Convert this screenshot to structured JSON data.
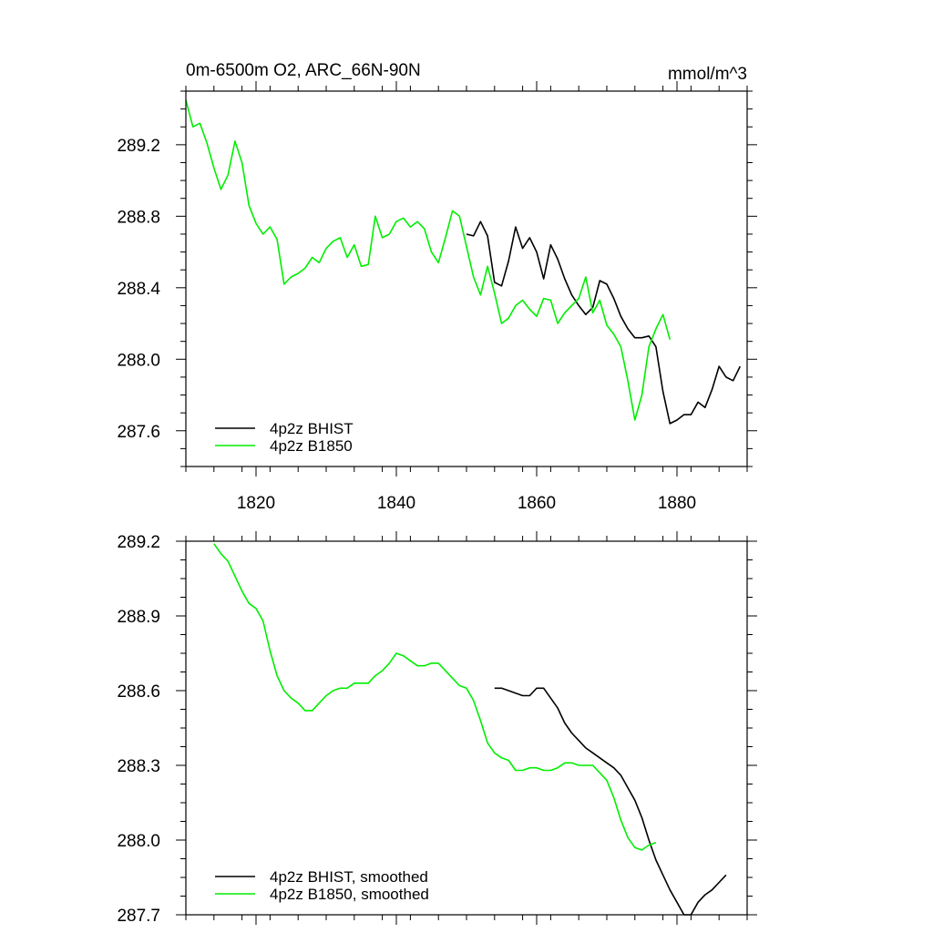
{
  "chart_data": [
    {
      "type": "line",
      "title": "0m-6500m O2, ARC_66N-90N",
      "units": "mmol/m^3",
      "xlim": [
        1810,
        1890
      ],
      "ylim": [
        287.4,
        289.5
      ],
      "x_ticks": [
        1820,
        1840,
        1860,
        1880
      ],
      "x_tick_labels": [
        "1820",
        "1840",
        "1860",
        "1880"
      ],
      "y_ticks": [
        287.6,
        288.0,
        288.4,
        288.8,
        289.2
      ],
      "y_tick_labels": [
        "287.6",
        "288.0",
        "288.4",
        "288.8",
        "289.2"
      ],
      "grid": false,
      "legend_position": "bottom-left",
      "series": [
        {
          "name": "4p2z BHIST",
          "color": "#000000",
          "x": [
            1850,
            1851,
            1852,
            1853,
            1854,
            1855,
            1856,
            1857,
            1858,
            1859,
            1860,
            1861,
            1862,
            1863,
            1864,
            1865,
            1866,
            1867,
            1868,
            1869,
            1870,
            1871,
            1872,
            1873,
            1874,
            1875,
            1876,
            1877,
            1878,
            1879,
            1880,
            1881,
            1882,
            1883,
            1884,
            1885,
            1886,
            1887,
            1888,
            1889
          ],
          "y": [
            288.7,
            288.69,
            288.77,
            288.69,
            288.43,
            288.41,
            288.55,
            288.74,
            288.62,
            288.68,
            288.6,
            288.45,
            288.64,
            288.56,
            288.45,
            288.36,
            288.3,
            288.25,
            288.29,
            288.44,
            288.42,
            288.34,
            288.24,
            288.17,
            288.12,
            288.12,
            288.13,
            288.07,
            287.82,
            287.64,
            287.66,
            287.69,
            287.69,
            287.76,
            287.73,
            287.83,
            287.96,
            287.9,
            287.88,
            287.96
          ]
        },
        {
          "name": "4p2z B1850",
          "color": "#00ee00",
          "x": [
            1810,
            1811,
            1812,
            1813,
            1814,
            1815,
            1816,
            1817,
            1818,
            1819,
            1820,
            1821,
            1822,
            1823,
            1824,
            1825,
            1826,
            1827,
            1828,
            1829,
            1830,
            1831,
            1832,
            1833,
            1834,
            1835,
            1836,
            1837,
            1838,
            1839,
            1840,
            1841,
            1842,
            1843,
            1844,
            1845,
            1846,
            1847,
            1848,
            1849,
            1850,
            1851,
            1852,
            1853,
            1854,
            1855,
            1856,
            1857,
            1858,
            1859,
            1860,
            1861,
            1862,
            1863,
            1864,
            1865,
            1866,
            1867,
            1868,
            1869,
            1870,
            1871,
            1872,
            1873,
            1874,
            1875,
            1876,
            1877,
            1878,
            1879
          ],
          "y": [
            289.45,
            289.3,
            289.32,
            289.21,
            289.07,
            288.95,
            289.03,
            289.22,
            289.1,
            288.86,
            288.76,
            288.7,
            288.74,
            288.67,
            288.42,
            288.46,
            288.48,
            288.51,
            288.57,
            288.54,
            288.62,
            288.66,
            288.68,
            288.57,
            288.64,
            288.52,
            288.53,
            288.8,
            288.68,
            288.7,
            288.77,
            288.79,
            288.74,
            288.77,
            288.73,
            288.6,
            288.54,
            288.68,
            288.83,
            288.8,
            288.63,
            288.46,
            288.36,
            288.52,
            288.37,
            288.2,
            288.23,
            288.3,
            288.33,
            288.28,
            288.24,
            288.34,
            288.33,
            288.2,
            288.26,
            288.3,
            288.34,
            288.46,
            288.26,
            288.33,
            288.19,
            288.14,
            288.07,
            287.88,
            287.66,
            287.8,
            288.07,
            288.17,
            288.25,
            288.11
          ]
        }
      ]
    },
    {
      "type": "line",
      "xlim": [
        1810,
        1890
      ],
      "ylim": [
        287.7,
        289.2
      ],
      "x_ticks": [
        1820,
        1840,
        1860,
        1880
      ],
      "y_ticks": [
        287.7,
        288.0,
        288.3,
        288.6,
        288.9,
        289.2
      ],
      "y_tick_labels": [
        "287.7",
        "288.0",
        "288.3",
        "288.6",
        "288.9",
        "289.2"
      ],
      "grid": false,
      "legend_position": "bottom-left",
      "series": [
        {
          "name": "4p2z BHIST, smoothed",
          "color": "#000000",
          "x": [
            1854,
            1855,
            1856,
            1857,
            1858,
            1859,
            1860,
            1861,
            1862,
            1863,
            1864,
            1865,
            1866,
            1867,
            1868,
            1869,
            1870,
            1871,
            1872,
            1873,
            1874,
            1875,
            1876,
            1877,
            1878,
            1879,
            1880,
            1881,
            1882,
            1883,
            1884,
            1885,
            1886,
            1887
          ],
          "y": [
            288.61,
            288.61,
            288.6,
            288.59,
            288.58,
            288.58,
            288.61,
            288.61,
            288.57,
            288.53,
            288.47,
            288.43,
            288.4,
            288.37,
            288.35,
            288.33,
            288.31,
            288.29,
            288.26,
            288.21,
            288.16,
            288.09,
            288.0,
            287.92,
            287.86,
            287.8,
            287.75,
            287.7,
            287.7,
            287.75,
            287.78,
            287.8,
            287.83,
            287.86
          ]
        },
        {
          "name": "4p2z B1850, smoothed",
          "color": "#00ee00",
          "x": [
            1814,
            1815,
            1816,
            1817,
            1818,
            1819,
            1820,
            1821,
            1822,
            1823,
            1824,
            1825,
            1826,
            1827,
            1828,
            1829,
            1830,
            1831,
            1832,
            1833,
            1834,
            1835,
            1836,
            1837,
            1838,
            1839,
            1840,
            1841,
            1842,
            1843,
            1844,
            1845,
            1846,
            1847,
            1848,
            1849,
            1850,
            1851,
            1852,
            1853,
            1854,
            1855,
            1856,
            1857,
            1858,
            1859,
            1860,
            1861,
            1862,
            1863,
            1864,
            1865,
            1866,
            1867,
            1868,
            1869,
            1870,
            1871,
            1872,
            1873,
            1874,
            1875,
            1876,
            1877
          ],
          "y": [
            289.19,
            289.15,
            289.12,
            289.06,
            289.0,
            288.95,
            288.93,
            288.88,
            288.76,
            288.66,
            288.6,
            288.57,
            288.55,
            288.52,
            288.52,
            288.55,
            288.58,
            288.6,
            288.61,
            288.61,
            288.63,
            288.63,
            288.63,
            288.66,
            288.68,
            288.71,
            288.75,
            288.74,
            288.72,
            288.7,
            288.7,
            288.71,
            288.71,
            288.68,
            288.65,
            288.62,
            288.61,
            288.56,
            288.48,
            288.39,
            288.35,
            288.33,
            288.32,
            288.28,
            288.28,
            288.29,
            288.29,
            288.28,
            288.28,
            288.29,
            288.31,
            288.31,
            288.3,
            288.3,
            288.3,
            288.27,
            288.24,
            288.17,
            288.08,
            288.01,
            287.97,
            287.96,
            287.98,
            287.99
          ]
        }
      ]
    }
  ]
}
